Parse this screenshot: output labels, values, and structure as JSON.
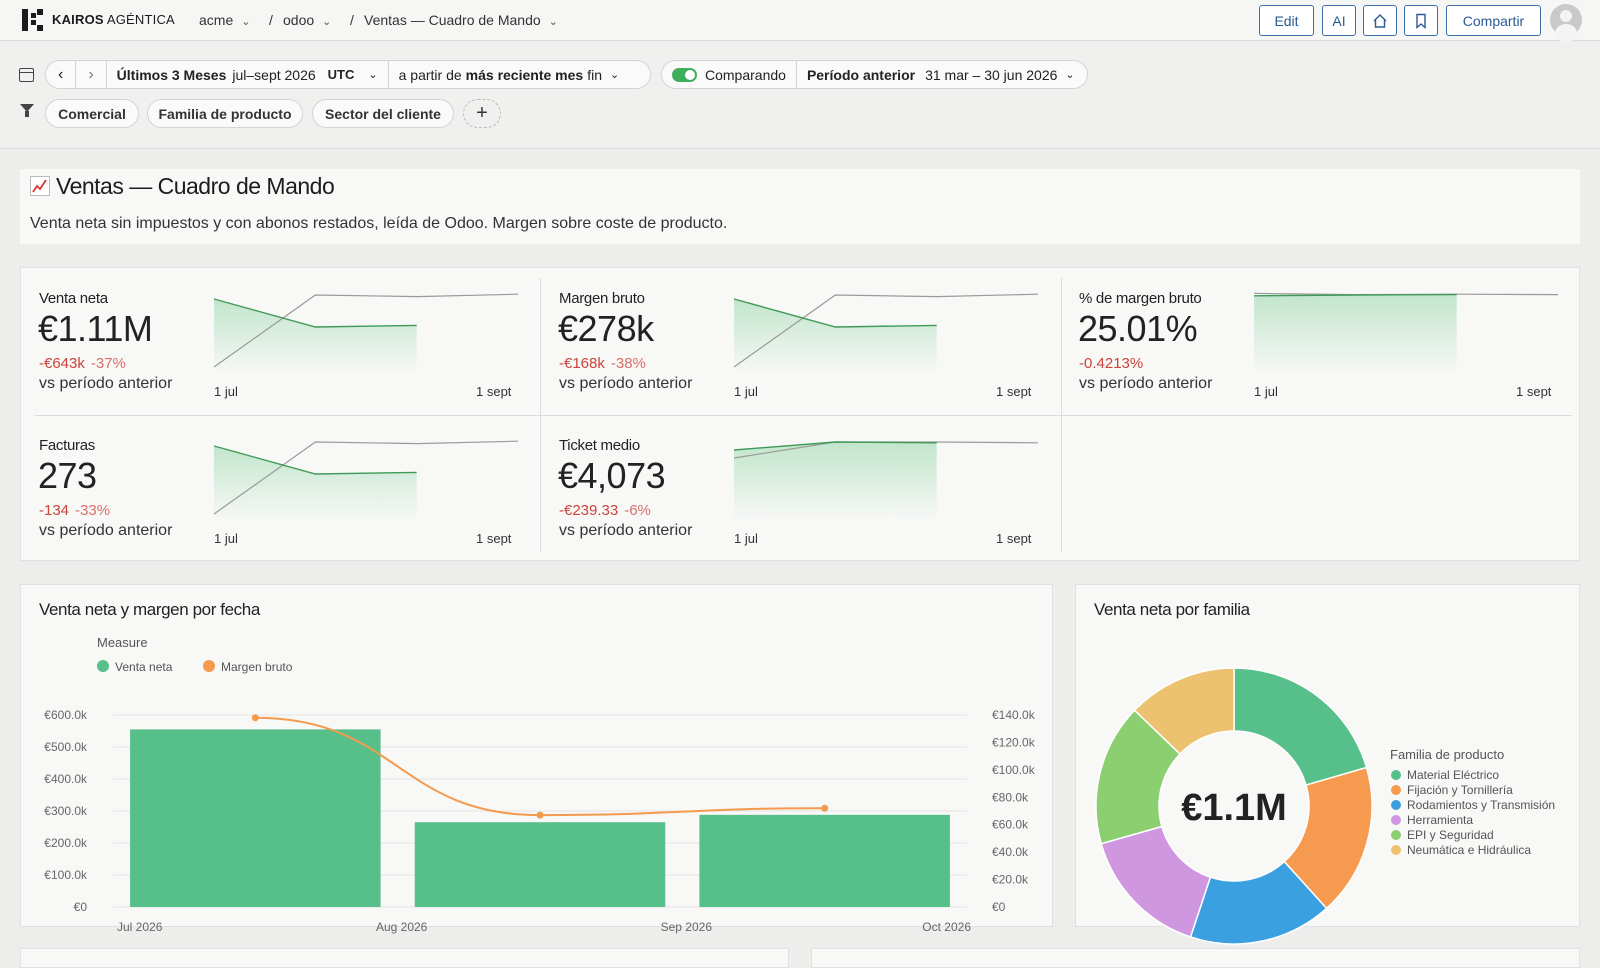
{
  "topbar": {
    "brand_bold": "KAIROS",
    "brand_light": " AGÉNTICA",
    "breadcrumbs": [
      {
        "label": "acme",
        "has_menu": true
      },
      {
        "label": "odoo",
        "has_menu": true
      },
      {
        "label": "Ventas — Cuadro de Mando",
        "has_menu": true
      }
    ],
    "separator": "/",
    "edit_label": "Edit",
    "ai_label": "AI",
    "share_label": "Compartir"
  },
  "date_filter": {
    "range_name": "Últimos 3 Meses",
    "range_dates": "jul–sept 2026",
    "timezone": "UTC",
    "anchor_prefix": "a partir de",
    "anchor_bold": "más reciente mes",
    "anchor_suffix": "fin",
    "compare_label": "Comparando",
    "compare_enabled": true,
    "compare_period_label": "Período anterior",
    "compare_dates": "31 mar – 30 jun 2026"
  },
  "filters": {
    "chips": [
      "Comercial",
      "Familia de producto",
      "Sector del cliente"
    ],
    "add_label": "+"
  },
  "header": {
    "title": "Ventas — Cuadro de Mando",
    "description": "Venta neta sin impuestos y con abonos restados, leída de Odoo. Margen sobre coste de producto."
  },
  "kpis": [
    {
      "label": "Venta neta",
      "value": "€1.11M",
      "delta": "-€643k",
      "delta_pct": "-37%",
      "vs": "vs período anterior",
      "date_start": "1 jul",
      "date_end": "1 sept",
      "current": [
        0.9,
        0.55,
        0.57
      ],
      "previous": [
        0.05,
        0.95,
        0.93,
        0.96
      ]
    },
    {
      "label": "Margen bruto",
      "value": "€278k",
      "delta": "-€168k",
      "delta_pct": "-38%",
      "vs": "vs período anterior",
      "date_start": "1 jul",
      "date_end": "1 sept",
      "current": [
        0.9,
        0.55,
        0.57
      ],
      "previous": [
        0.05,
        0.95,
        0.93,
        0.96
      ]
    },
    {
      "label": "% de margen bruto",
      "value": "25.01%",
      "delta": "-0.4213%",
      "delta_pct": "",
      "vs": "vs período anterior",
      "date_start": "1 jul",
      "date_end": "1 sept",
      "current": [
        0.94,
        0.95,
        0.955
      ],
      "previous": [
        0.97,
        0.955,
        0.96,
        0.955
      ]
    },
    {
      "label": "Facturas",
      "value": "273",
      "delta": "-134",
      "delta_pct": "-33%",
      "vs": "vs período anterior",
      "date_start": "1 jul",
      "date_end": "1 sept",
      "current": [
        0.9,
        0.55,
        0.57
      ],
      "previous": [
        0.05,
        0.95,
        0.93,
        0.96
      ]
    },
    {
      "label": "Ticket medio",
      "value": "€4,073",
      "delta": "-€239.33",
      "delta_pct": "-6%",
      "vs": "vs período anterior",
      "date_start": "1 jul",
      "date_end": "1 sept",
      "current": [
        0.85,
        0.95,
        0.94
      ],
      "previous": [
        0.75,
        0.95,
        0.95,
        0.94
      ]
    }
  ],
  "combo_chart": {
    "title": "Venta neta y margen por fecha",
    "legend_title": "Measure",
    "colors": {
      "bar": "#56bf8a",
      "line": "#f39a4d",
      "grid": "#e4e4e4",
      "text": "#666666"
    }
  },
  "donut_chart": {
    "title": "Venta neta por familia",
    "center_label": "€1.1M",
    "legend_title": "Familia de producto"
  },
  "chart_data": [
    {
      "type": "bar",
      "title": "Venta neta y margen por fecha",
      "categories": [
        "Jul 2026",
        "Aug 2026",
        "Sep 2026"
      ],
      "x_tick_labels": [
        "Jul 2026",
        "Aug 2026",
        "Sep 2026",
        "Oct 2026"
      ],
      "series": [
        {
          "name": "Venta neta",
          "kind": "bar",
          "axis": "left",
          "color": "#56bf8a",
          "values": [
            555000,
            265000,
            288000
          ]
        },
        {
          "name": "Margen bruto",
          "kind": "line",
          "axis": "right",
          "color": "#f39a4d",
          "values": [
            138000,
            67000,
            72000
          ]
        }
      ],
      "y_left": {
        "ylim": [
          0,
          600000
        ],
        "ticks": [
          "€0",
          "€100.0k",
          "€200.0k",
          "€300.0k",
          "€400.0k",
          "€500.0k",
          "€600.0k"
        ]
      },
      "y_right": {
        "ylim": [
          0,
          140000
        ],
        "ticks": [
          "€0",
          "€20.0k",
          "€40.0k",
          "€60.0k",
          "€80.0k",
          "€100.0k",
          "€120.0k",
          "€140.0k"
        ]
      },
      "legend_title": "Measure",
      "legend_position": "top-left",
      "grid": true
    },
    {
      "type": "pie",
      "title": "Venta neta por familia",
      "donut": true,
      "center_label": "€1.1M",
      "legend_title": "Familia de producto",
      "legend_position": "right",
      "labels": [
        "Material Eléctrico",
        "Fijación y Tornillería",
        "Rodamientos y Transmisión",
        "Herramienta",
        "EPI y Seguridad",
        "Neumática e Hidráulica"
      ],
      "values": [
        0.205,
        0.178,
        0.168,
        0.155,
        0.166,
        0.128
      ],
      "colors": [
        "#56bf8a",
        "#f59a4f",
        "#3aa0e0",
        "#cf97e0",
        "#8ccf70",
        "#ecc170"
      ]
    }
  ]
}
